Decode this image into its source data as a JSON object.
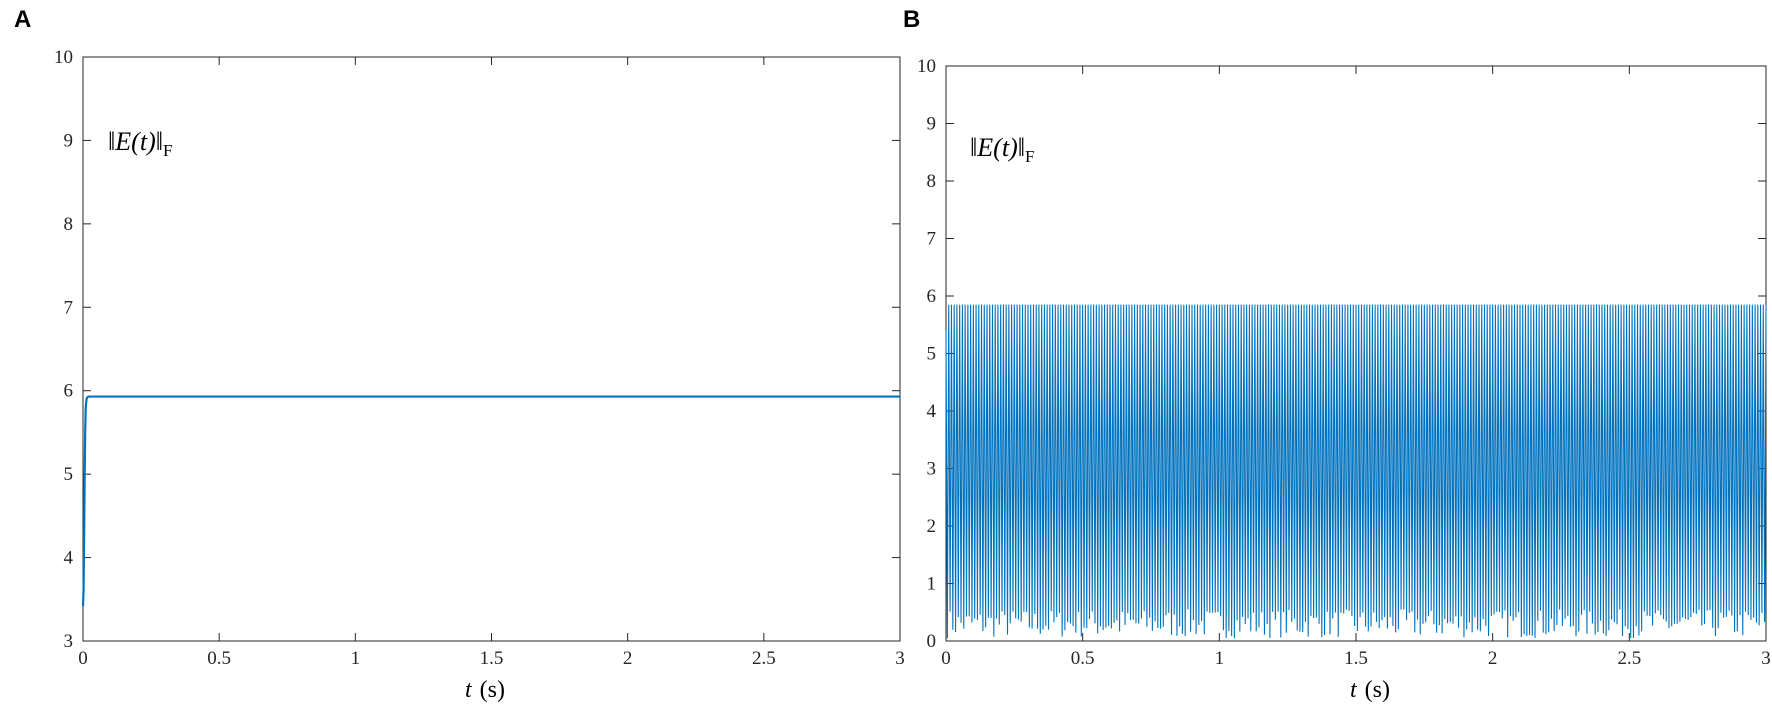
{
  "chart_data": [
    {
      "panel": "A",
      "type": "line",
      "annotation": {
        "main": "‖E(t)‖",
        "sub": "F"
      },
      "xlabel": {
        "var": "t",
        "unit": "(s)"
      },
      "xlim": [
        0,
        3
      ],
      "ylim": [
        3,
        10
      ],
      "xticks": [
        "0",
        "0.5",
        "1",
        "1.5",
        "2",
        "2.5",
        "3"
      ],
      "yticks": [
        "3",
        "4",
        "5",
        "6",
        "7",
        "8",
        "9",
        "10"
      ],
      "grid": false,
      "series": [
        {
          "color": "#0072BD",
          "x": [
            0,
            0.002,
            0.004,
            0.006,
            0.008,
            0.01,
            0.013,
            0.016,
            0.02,
            0.03,
            0.05,
            0.1,
            0.5,
            1,
            1.5,
            2,
            2.5,
            3
          ],
          "y": [
            3.42,
            3.6,
            4.2,
            4.9,
            5.5,
            5.8,
            5.9,
            5.92,
            5.93,
            5.93,
            5.93,
            5.93,
            5.93,
            5.93,
            5.93,
            5.93,
            5.93,
            5.93
          ]
        }
      ]
    },
    {
      "panel": "B",
      "type": "line",
      "annotation": {
        "main": "‖E(t)‖",
        "sub": "F"
      },
      "xlabel": {
        "var": "t",
        "unit": "(s)"
      },
      "xlim": [
        0,
        3
      ],
      "ylim": [
        0,
        10
      ],
      "xticks": [
        "0",
        "0.5",
        "1",
        "1.5",
        "2",
        "2.5",
        "3"
      ],
      "yticks": [
        "0",
        "1",
        "2",
        "3",
        "4",
        "5",
        "6",
        "7",
        "8",
        "9",
        "10"
      ],
      "grid": false,
      "series": [
        {
          "color": "#0072BD",
          "oscillation": {
            "peak": 5.85,
            "trough_range": [
              0.05,
              0.55
            ],
            "cycles": 300,
            "initial_value": 5.4
          }
        }
      ]
    }
  ]
}
